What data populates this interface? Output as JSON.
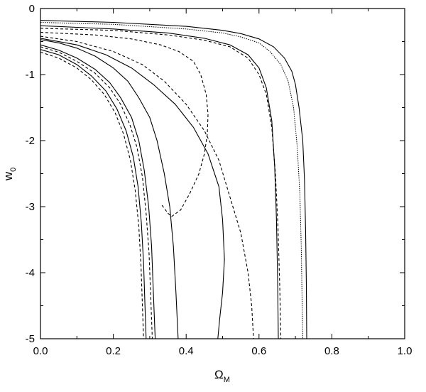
{
  "chart_data": {
    "type": "line",
    "xlabel": "Ω",
    "xlabel_sub": "M",
    "ylabel": "w",
    "ylabel_sub": "0",
    "xlim": [
      0.0,
      1.0
    ],
    "ylim": [
      -5,
      0
    ],
    "xticks": [
      0.0,
      0.2,
      0.4,
      0.6,
      0.8,
      1.0
    ],
    "xtick_labels": [
      "0.0",
      "0.2",
      "0.4",
      "0.6",
      "0.8",
      "1.0"
    ],
    "yticks": [
      0,
      -1,
      -2,
      -3,
      -4,
      -5
    ],
    "ytick_labels": [
      "0",
      "-1",
      "-2",
      "-3",
      "-4",
      "-5"
    ],
    "grid": false,
    "legend": "none",
    "series": [
      {
        "style": "solid",
        "points": [
          [
            0.0,
            -0.18
          ],
          [
            0.2,
            -0.21
          ],
          [
            0.4,
            -0.27
          ],
          [
            0.5,
            -0.33
          ],
          [
            0.55,
            -0.38
          ],
          [
            0.6,
            -0.46
          ],
          [
            0.64,
            -0.58
          ],
          [
            0.67,
            -0.75
          ],
          [
            0.69,
            -0.95
          ],
          [
            0.7,
            -1.15
          ],
          [
            0.71,
            -1.5
          ],
          [
            0.72,
            -2.0
          ],
          [
            0.725,
            -2.6
          ],
          [
            0.728,
            -3.4
          ],
          [
            0.73,
            -4.2
          ],
          [
            0.731,
            -5.0
          ]
        ]
      },
      {
        "style": "dotted",
        "points": [
          [
            0.0,
            -0.21
          ],
          [
            0.2,
            -0.24
          ],
          [
            0.4,
            -0.31
          ],
          [
            0.5,
            -0.37
          ],
          [
            0.55,
            -0.43
          ],
          [
            0.6,
            -0.52
          ],
          [
            0.63,
            -0.65
          ],
          [
            0.66,
            -0.85
          ],
          [
            0.68,
            -1.1
          ],
          [
            0.695,
            -1.5
          ],
          [
            0.705,
            -2.1
          ],
          [
            0.712,
            -2.8
          ],
          [
            0.716,
            -3.6
          ],
          [
            0.718,
            -4.3
          ],
          [
            0.72,
            -5.0
          ]
        ]
      },
      {
        "style": "solid",
        "points": [
          [
            0.0,
            -0.26
          ],
          [
            0.2,
            -0.31
          ],
          [
            0.35,
            -0.37
          ],
          [
            0.45,
            -0.45
          ],
          [
            0.52,
            -0.55
          ],
          [
            0.57,
            -0.7
          ],
          [
            0.6,
            -0.9
          ],
          [
            0.62,
            -1.2
          ],
          [
            0.635,
            -1.7
          ],
          [
            0.643,
            -2.4
          ],
          [
            0.648,
            -3.2
          ],
          [
            0.651,
            -4.1
          ],
          [
            0.653,
            -5.0
          ]
        ]
      },
      {
        "style": "dashed",
        "points": [
          [
            0.0,
            -0.3
          ],
          [
            0.2,
            -0.33
          ],
          [
            0.35,
            -0.4
          ],
          [
            0.45,
            -0.48
          ],
          [
            0.52,
            -0.58
          ],
          [
            0.57,
            -0.75
          ],
          [
            0.6,
            -1.0
          ],
          [
            0.62,
            -1.3
          ],
          [
            0.635,
            -1.8
          ],
          [
            0.645,
            -2.5
          ],
          [
            0.652,
            -3.3
          ],
          [
            0.657,
            -4.2
          ],
          [
            0.66,
            -5.0
          ]
        ]
      },
      {
        "style": "dashed",
        "points": [
          [
            0.0,
            -0.36
          ],
          [
            0.15,
            -0.4
          ],
          [
            0.25,
            -0.46
          ],
          [
            0.33,
            -0.55
          ],
          [
            0.38,
            -0.65
          ],
          [
            0.42,
            -0.8
          ],
          [
            0.44,
            -1.0
          ],
          [
            0.455,
            -1.3
          ],
          [
            0.46,
            -1.6
          ],
          [
            0.458,
            -1.9
          ],
          [
            0.45,
            -2.2
          ],
          [
            0.435,
            -2.5
          ],
          [
            0.41,
            -2.8
          ],
          [
            0.385,
            -3.05
          ],
          [
            0.36,
            -3.15
          ],
          [
            0.35,
            -3.1
          ],
          [
            0.33,
            -2.95
          ]
        ]
      },
      {
        "style": "dashed",
        "points": [
          [
            0.0,
            -0.42
          ],
          [
            0.1,
            -0.5
          ],
          [
            0.2,
            -0.65
          ],
          [
            0.28,
            -0.85
          ],
          [
            0.34,
            -1.1
          ],
          [
            0.4,
            -1.45
          ],
          [
            0.45,
            -1.85
          ],
          [
            0.49,
            -2.3
          ],
          [
            0.52,
            -2.85
          ],
          [
            0.55,
            -3.4
          ],
          [
            0.57,
            -4.0
          ],
          [
            0.58,
            -4.5
          ],
          [
            0.585,
            -5.0
          ]
        ]
      },
      {
        "style": "solid",
        "points": [
          [
            0.0,
            -0.45
          ],
          [
            0.1,
            -0.55
          ],
          [
            0.18,
            -0.7
          ],
          [
            0.25,
            -0.9
          ],
          [
            0.31,
            -1.15
          ],
          [
            0.37,
            -1.45
          ],
          [
            0.42,
            -1.8
          ],
          [
            0.46,
            -2.2
          ],
          [
            0.49,
            -2.7
          ],
          [
            0.5,
            -3.2
          ],
          [
            0.505,
            -3.8
          ],
          [
            0.5,
            -4.3
          ],
          [
            0.492,
            -4.7
          ],
          [
            0.487,
            -5.0
          ]
        ]
      },
      {
        "style": "solid",
        "points": [
          [
            0.0,
            -0.47
          ],
          [
            0.05,
            -0.52
          ],
          [
            0.1,
            -0.6
          ],
          [
            0.15,
            -0.72
          ],
          [
            0.2,
            -0.9
          ],
          [
            0.24,
            -1.1
          ],
          [
            0.27,
            -1.35
          ],
          [
            0.3,
            -1.65
          ],
          [
            0.32,
            -2.0
          ],
          [
            0.34,
            -2.5
          ],
          [
            0.355,
            -3.0
          ],
          [
            0.365,
            -3.6
          ],
          [
            0.372,
            -4.3
          ],
          [
            0.378,
            -5.0
          ]
        ]
      },
      {
        "style": "solid",
        "points": [
          [
            0.0,
            -0.55
          ],
          [
            0.05,
            -0.63
          ],
          [
            0.1,
            -0.75
          ],
          [
            0.15,
            -0.92
          ],
          [
            0.19,
            -1.12
          ],
          [
            0.22,
            -1.35
          ],
          [
            0.25,
            -1.65
          ],
          [
            0.27,
            -2.0
          ],
          [
            0.285,
            -2.45
          ],
          [
            0.297,
            -3.0
          ],
          [
            0.305,
            -3.6
          ],
          [
            0.31,
            -4.3
          ],
          [
            0.315,
            -5.0
          ]
        ]
      },
      {
        "style": "dashed",
        "points": [
          [
            0.0,
            -0.58
          ],
          [
            0.05,
            -0.66
          ],
          [
            0.1,
            -0.8
          ],
          [
            0.15,
            -0.98
          ],
          [
            0.19,
            -1.2
          ],
          [
            0.22,
            -1.45
          ],
          [
            0.245,
            -1.75
          ],
          [
            0.265,
            -2.1
          ],
          [
            0.28,
            -2.55
          ],
          [
            0.29,
            -3.1
          ],
          [
            0.298,
            -3.7
          ],
          [
            0.303,
            -4.4
          ],
          [
            0.307,
            -5.0
          ]
        ]
      },
      {
        "style": "solid",
        "points": [
          [
            0.0,
            -0.62
          ],
          [
            0.05,
            -0.7
          ],
          [
            0.1,
            -0.85
          ],
          [
            0.14,
            -1.02
          ],
          [
            0.18,
            -1.25
          ],
          [
            0.21,
            -1.52
          ],
          [
            0.235,
            -1.85
          ],
          [
            0.255,
            -2.25
          ],
          [
            0.268,
            -2.7
          ],
          [
            0.277,
            -3.25
          ],
          [
            0.283,
            -3.85
          ],
          [
            0.287,
            -4.5
          ],
          [
            0.29,
            -5.0
          ]
        ]
      },
      {
        "style": "dashed",
        "points": [
          [
            0.0,
            -0.66
          ],
          [
            0.05,
            -0.75
          ],
          [
            0.1,
            -0.9
          ],
          [
            0.14,
            -1.08
          ],
          [
            0.175,
            -1.3
          ],
          [
            0.205,
            -1.58
          ],
          [
            0.228,
            -1.9
          ],
          [
            0.247,
            -2.3
          ],
          [
            0.26,
            -2.75
          ],
          [
            0.27,
            -3.3
          ],
          [
            0.276,
            -3.9
          ],
          [
            0.28,
            -4.5
          ],
          [
            0.283,
            -5.0
          ]
        ]
      }
    ]
  }
}
